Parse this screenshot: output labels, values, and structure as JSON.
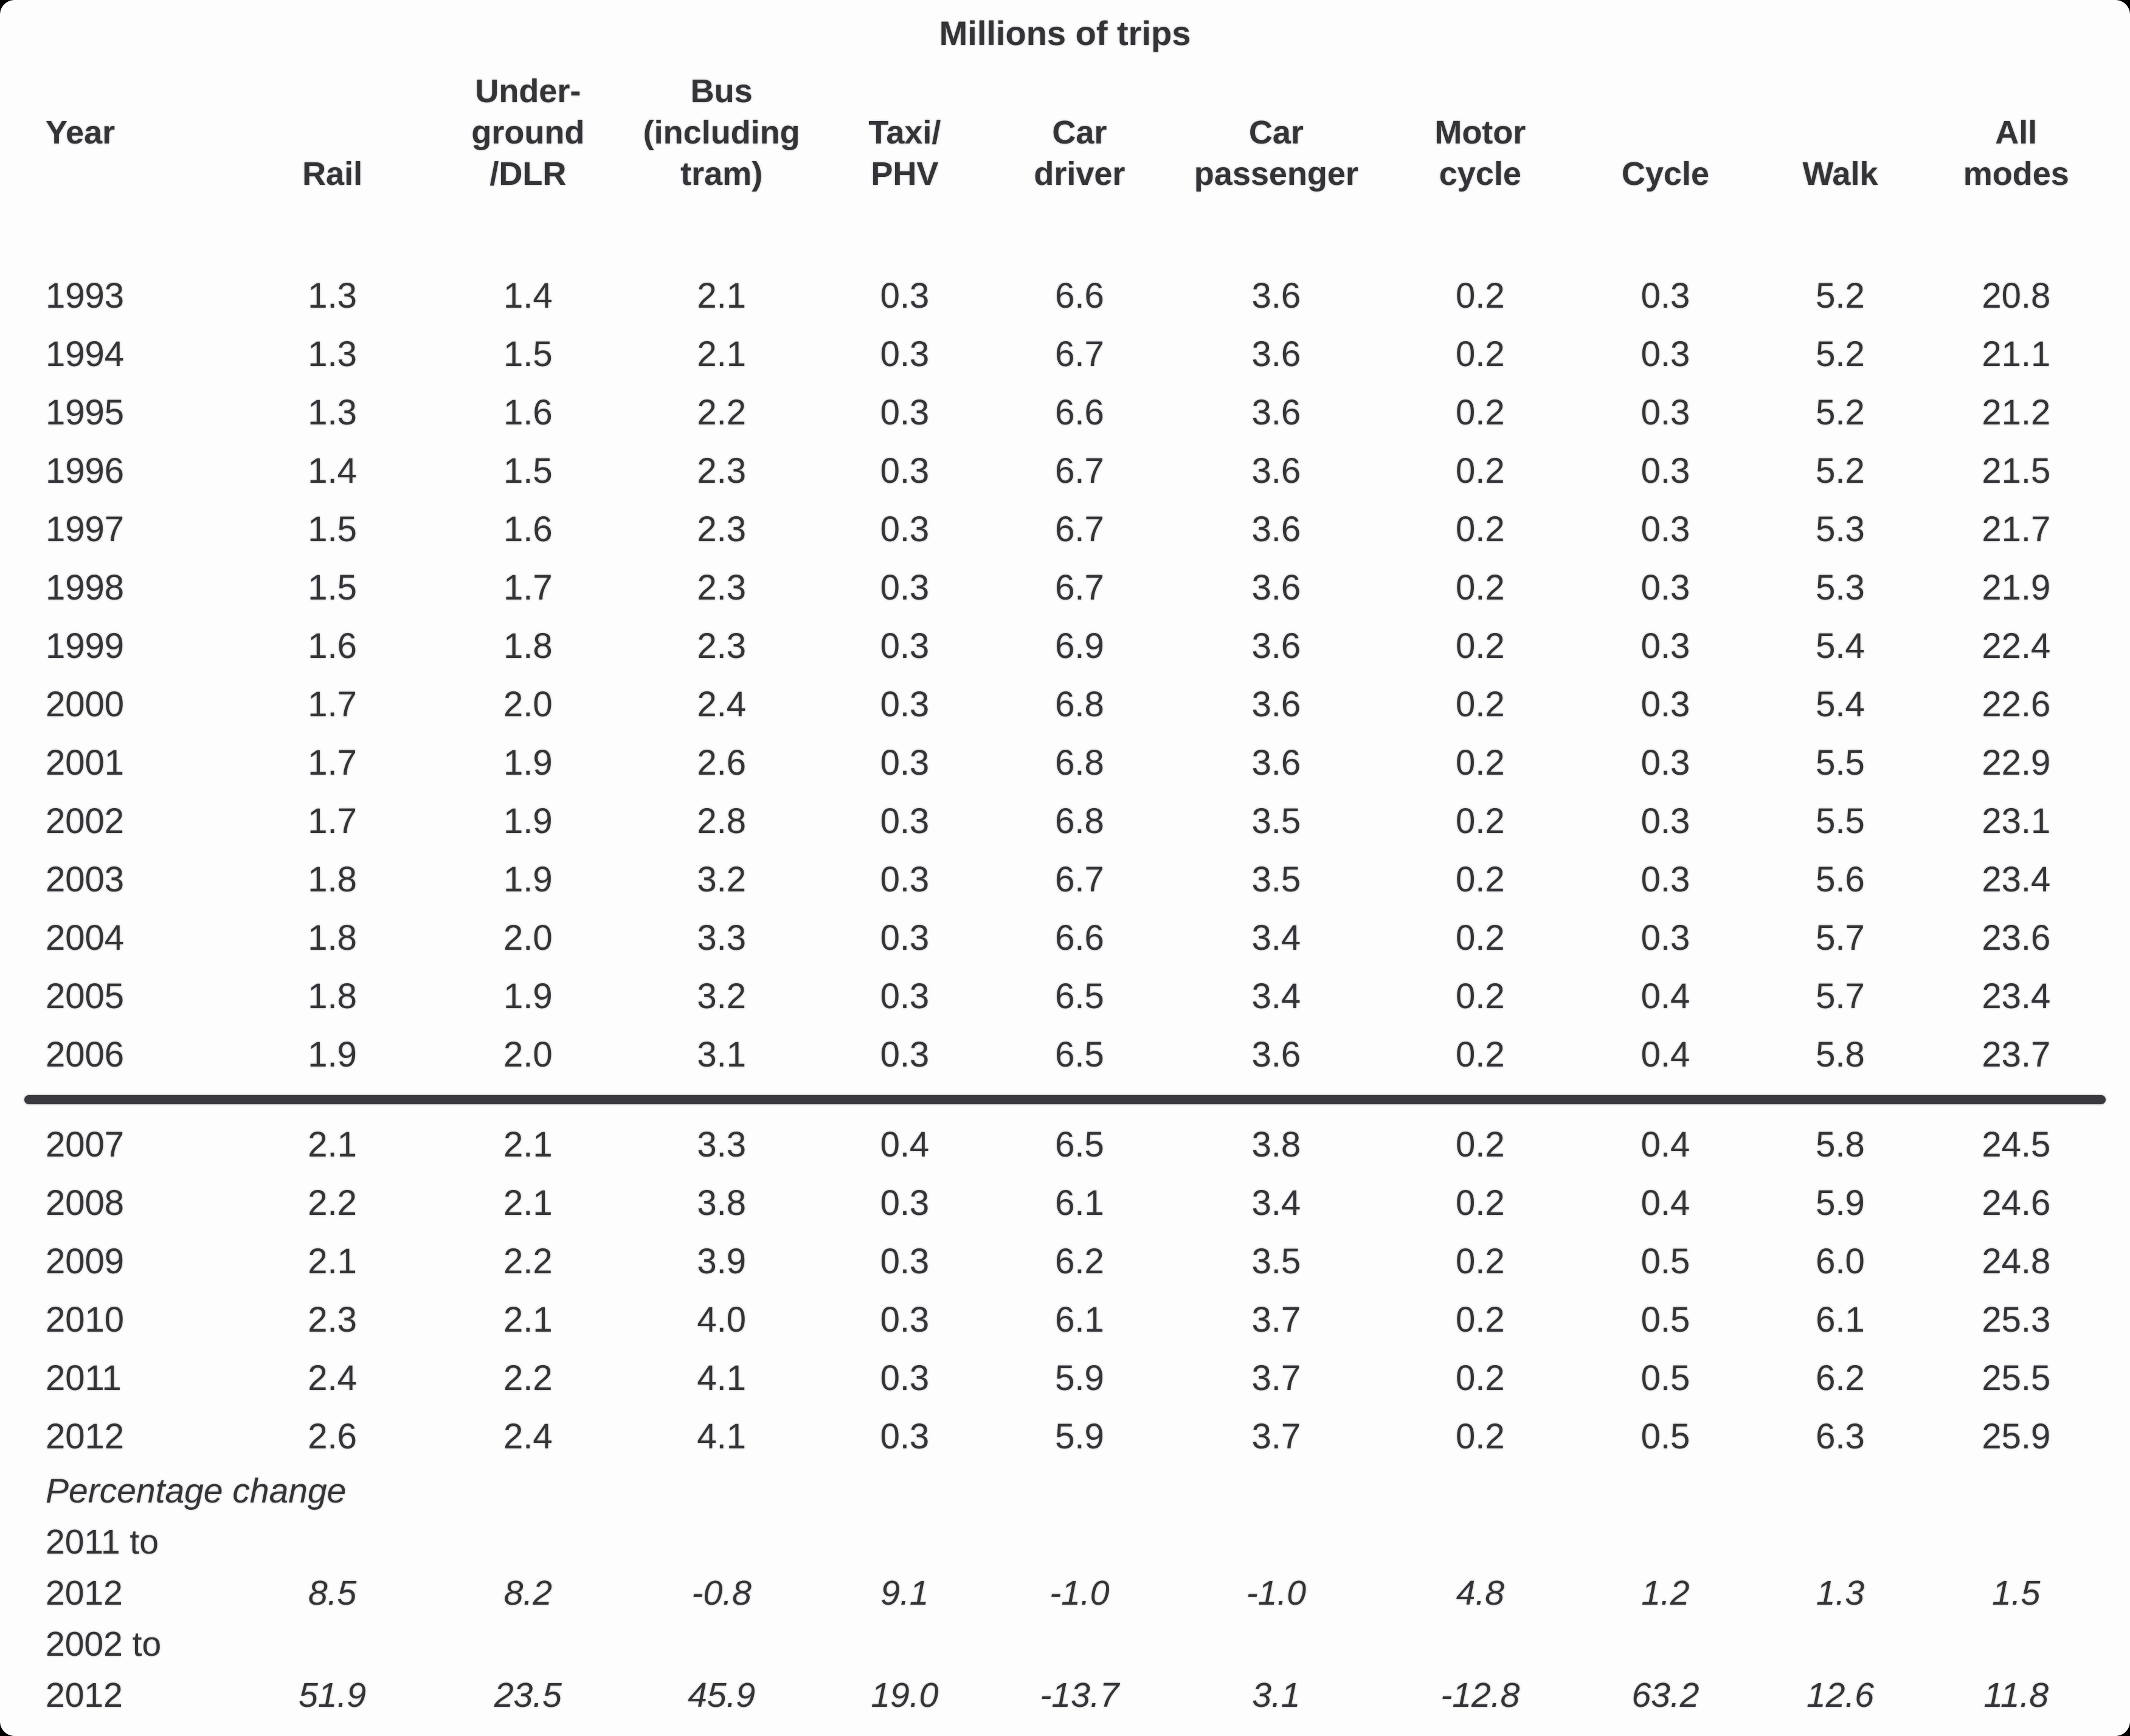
{
  "page": {
    "title": "Millions of trips",
    "columns": [
      "Year\n ",
      "Rail",
      "Under-\nground\n/DLR",
      "Bus\n(including\ntram)",
      "Taxi/\nPHV",
      "Car\ndriver",
      "Car\npassenger",
      "Motor\ncycle",
      "Cycle",
      "Walk",
      "All\nmodes"
    ],
    "rows": [
      {
        "year": "1993",
        "values": [
          "1.3",
          "1.4",
          "2.1",
          "0.3",
          "6.6",
          "3.6",
          "0.2",
          "0.3",
          "5.2",
          "20.8"
        ]
      },
      {
        "year": "1994",
        "values": [
          "1.3",
          "1.5",
          "2.1",
          "0.3",
          "6.7",
          "3.6",
          "0.2",
          "0.3",
          "5.2",
          "21.1"
        ]
      },
      {
        "year": "1995",
        "values": [
          "1.3",
          "1.6",
          "2.2",
          "0.3",
          "6.6",
          "3.6",
          "0.2",
          "0.3",
          "5.2",
          "21.2"
        ]
      },
      {
        "year": "1996",
        "values": [
          "1.4",
          "1.5",
          "2.3",
          "0.3",
          "6.7",
          "3.6",
          "0.2",
          "0.3",
          "5.2",
          "21.5"
        ]
      },
      {
        "year": "1997",
        "values": [
          "1.5",
          "1.6",
          "2.3",
          "0.3",
          "6.7",
          "3.6",
          "0.2",
          "0.3",
          "5.3",
          "21.7"
        ]
      },
      {
        "year": "1998",
        "values": [
          "1.5",
          "1.7",
          "2.3",
          "0.3",
          "6.7",
          "3.6",
          "0.2",
          "0.3",
          "5.3",
          "21.9"
        ]
      },
      {
        "year": "1999",
        "values": [
          "1.6",
          "1.8",
          "2.3",
          "0.3",
          "6.9",
          "3.6",
          "0.2",
          "0.3",
          "5.4",
          "22.4"
        ]
      },
      {
        "year": "2000",
        "values": [
          "1.7",
          "2.0",
          "2.4",
          "0.3",
          "6.8",
          "3.6",
          "0.2",
          "0.3",
          "5.4",
          "22.6"
        ]
      },
      {
        "year": "2001",
        "values": [
          "1.7",
          "1.9",
          "2.6",
          "0.3",
          "6.8",
          "3.6",
          "0.2",
          "0.3",
          "5.5",
          "22.9"
        ]
      },
      {
        "year": "2002",
        "values": [
          "1.7",
          "1.9",
          "2.8",
          "0.3",
          "6.8",
          "3.5",
          "0.2",
          "0.3",
          "5.5",
          "23.1"
        ]
      },
      {
        "year": "2003",
        "values": [
          "1.8",
          "1.9",
          "3.2",
          "0.3",
          "6.7",
          "3.5",
          "0.2",
          "0.3",
          "5.6",
          "23.4"
        ]
      },
      {
        "year": "2004",
        "values": [
          "1.8",
          "2.0",
          "3.3",
          "0.3",
          "6.6",
          "3.4",
          "0.2",
          "0.3",
          "5.7",
          "23.6"
        ]
      },
      {
        "year": "2005",
        "values": [
          "1.8",
          "1.9",
          "3.2",
          "0.3",
          "6.5",
          "3.4",
          "0.2",
          "0.4",
          "5.7",
          "23.4"
        ]
      },
      {
        "year": "2006",
        "values": [
          "1.9",
          "2.0",
          "3.1",
          "0.3",
          "6.5",
          "3.6",
          "0.2",
          "0.4",
          "5.8",
          "23.7"
        ]
      },
      {
        "year": "2007",
        "values": [
          "2.1",
          "2.1",
          "3.3",
          "0.4",
          "6.5",
          "3.8",
          "0.2",
          "0.4",
          "5.8",
          "24.5"
        ]
      },
      {
        "year": "2008",
        "values": [
          "2.2",
          "2.1",
          "3.8",
          "0.3",
          "6.1",
          "3.4",
          "0.2",
          "0.4",
          "5.9",
          "24.6"
        ]
      },
      {
        "year": "2009",
        "values": [
          "2.1",
          "2.2",
          "3.9",
          "0.3",
          "6.2",
          "3.5",
          "0.2",
          "0.5",
          "6.0",
          "24.8"
        ]
      },
      {
        "year": "2010",
        "values": [
          "2.3",
          "2.1",
          "4.0",
          "0.3",
          "6.1",
          "3.7",
          "0.2",
          "0.5",
          "6.1",
          "25.3"
        ]
      },
      {
        "year": "2011",
        "values": [
          "2.4",
          "2.2",
          "4.1",
          "0.3",
          "5.9",
          "3.7",
          "0.2",
          "0.5",
          "6.2",
          "25.5"
        ]
      },
      {
        "year": "2012",
        "values": [
          "2.6",
          "2.4",
          "4.1",
          "0.3",
          "5.9",
          "3.7",
          "0.2",
          "0.5",
          "6.3",
          "25.9"
        ]
      }
    ],
    "separator_after_year": "2006",
    "percentage_change": {
      "heading": "Percentage change",
      "periods": [
        {
          "label": "2011 to",
          "year": "2012",
          "values": [
            "8.5",
            "8.2",
            "-0.8",
            "9.1",
            "-1.0",
            "-1.0",
            "4.8",
            "1.2",
            "1.3",
            "1.5"
          ]
        },
        {
          "label": "2002 to",
          "year": "2012",
          "values": [
            "51.9",
            "23.5",
            "45.9",
            "19.0",
            "-13.7",
            "3.1",
            "-12.8",
            "63.2",
            "12.6",
            "11.8"
          ]
        }
      ]
    }
  }
}
